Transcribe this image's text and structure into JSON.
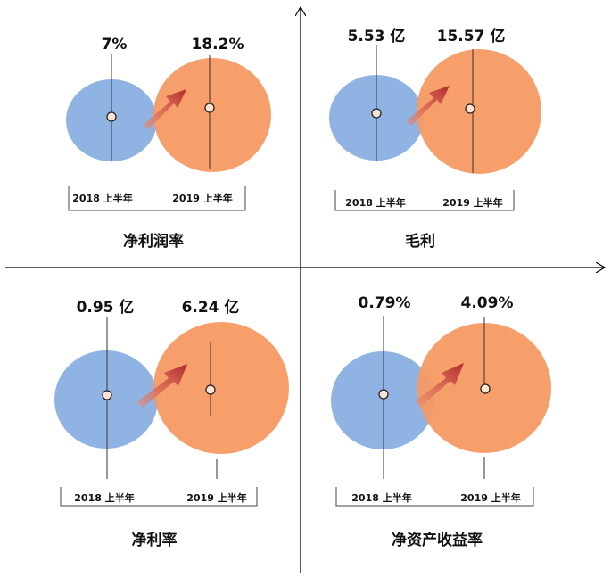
{
  "colors": {
    "circle_2018": "#8fb4e3",
    "circle_2019": "#f79a63",
    "arrow": "#c0393b",
    "axis": "#000000"
  },
  "quadrants": [
    {
      "title": "净利润率",
      "value_2018": "7%",
      "value_2019": "18.2%",
      "label_2018": "2018 上半年",
      "label_2019": "2019 上半年"
    },
    {
      "title": "毛利",
      "value_2018": "5.53 亿",
      "value_2019": "15.57 亿",
      "label_2018": "2018 上半年",
      "label_2019": "2019 上半年"
    },
    {
      "title": "净利率",
      "value_2018": "0.95 亿",
      "value_2019": "6.24 亿",
      "label_2018": "2018 上半年",
      "label_2019": "2019 上半年"
    },
    {
      "title": "净资产收益率",
      "value_2018": "0.79%",
      "value_2019": "4.09%",
      "label_2018": "2018 上半年",
      "label_2019": "2019 上半年"
    }
  ]
}
